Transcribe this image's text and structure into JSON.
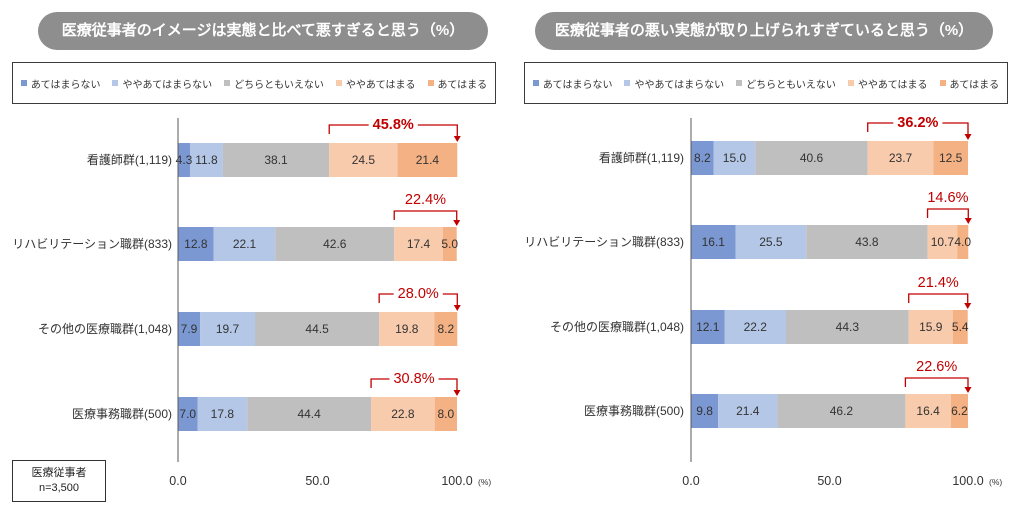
{
  "note": {
    "population": "医療従事者",
    "sample_size": "n=3,500"
  },
  "chart_data": [
    {
      "type": "bar",
      "horizontal": true,
      "stacked": true,
      "title": "医療従事者のイメージは実態と比べて悪すぎると思う（%）",
      "categories": [
        "看護師群(1,119)",
        "リハビリテーション職群(833)",
        "その他の医療職群(1,048)",
        "医療事務職群(500)"
      ],
      "series": [
        {
          "name": "あてはまらない",
          "color": "#7b98d2",
          "values": [
            4.3,
            12.8,
            7.9,
            7.0
          ]
        },
        {
          "name": "ややあてはまらない",
          "color": "#b4c7e7",
          "values": [
            11.8,
            22.1,
            19.7,
            17.8
          ]
        },
        {
          "name": "どちらともいえない",
          "color": "#bfbfbf",
          "values": [
            38.1,
            42.6,
            44.5,
            44.4
          ]
        },
        {
          "name": "ややあてはまる",
          "color": "#f8cbad",
          "values": [
            24.5,
            17.4,
            19.8,
            22.8
          ]
        },
        {
          "name": "あてはまる",
          "color": "#f4b183",
          "values": [
            21.4,
            5.0,
            8.2,
            8.0
          ]
        }
      ],
      "bracket_series": [
        3,
        4
      ],
      "bracket_totals": [
        "45.8%",
        "22.4%",
        "28.0%",
        "30.8%"
      ],
      "emphasized_row": 0,
      "xlim": [
        0,
        100
      ],
      "xticks": [
        0,
        50,
        100
      ],
      "xtick_labels": [
        "0.0",
        "50.0",
        "100.0"
      ],
      "xunit": "(%)"
    },
    {
      "type": "bar",
      "horizontal": true,
      "stacked": true,
      "title": "医療従事者の悪い実態が取り上げられすぎていると思う（%）",
      "categories": [
        "看護師群(1,119)",
        "リハビリテーション職群(833)",
        "その他の医療職群(1,048)",
        "医療事務職群(500)"
      ],
      "series": [
        {
          "name": "あてはまらない",
          "color": "#7b98d2",
          "values": [
            8.2,
            16.1,
            12.1,
            9.8
          ]
        },
        {
          "name": "ややあてはまらない",
          "color": "#b4c7e7",
          "values": [
            15.0,
            25.5,
            22.2,
            21.4
          ]
        },
        {
          "name": "どちらともいえない",
          "color": "#bfbfbf",
          "values": [
            40.6,
            43.8,
            44.3,
            46.2
          ]
        },
        {
          "name": "ややあてはまる",
          "color": "#f8cbad",
          "values": [
            23.7,
            10.7,
            15.9,
            16.4
          ]
        },
        {
          "name": "あてはまる",
          "color": "#f4b183",
          "values": [
            12.5,
            4.0,
            5.4,
            6.2
          ]
        }
      ],
      "bracket_series": [
        3,
        4
      ],
      "bracket_totals": [
        "36.2%",
        "14.6%",
        "21.4%",
        "22.6%"
      ],
      "emphasized_row": 0,
      "xlim": [
        0,
        100
      ],
      "xticks": [
        0,
        50,
        100
      ],
      "xtick_labels": [
        "0.0",
        "50.0",
        "100.0"
      ],
      "xunit": "(%)"
    }
  ]
}
